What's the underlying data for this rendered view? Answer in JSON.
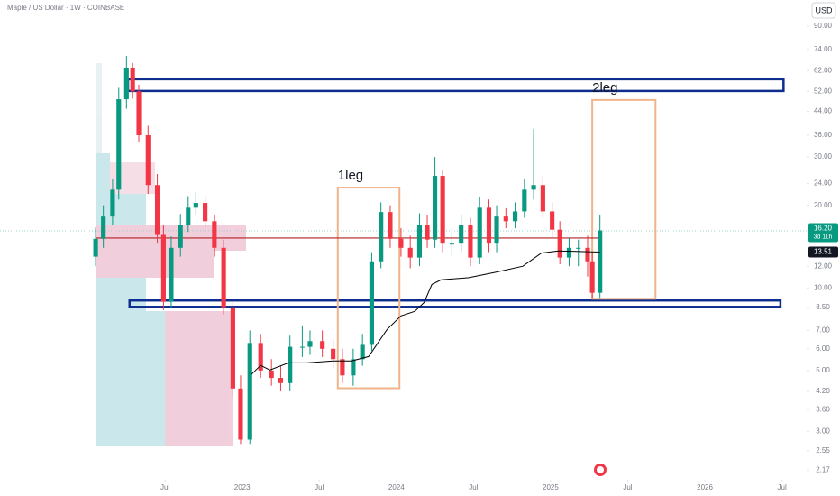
{
  "chart_data": {
    "type": "candlestick",
    "title": "Maple / US Dollar · 1W · COINBASE",
    "currency": "USD",
    "x": [
      2022.05,
      2022.1,
      2022.16,
      2022.2,
      2022.25,
      2022.29,
      2022.33,
      2022.39,
      2022.45,
      2022.49,
      2022.54,
      2022.6,
      2022.65,
      2022.7,
      2022.76,
      2022.82,
      2022.88,
      2022.94,
      2022.99,
      2023.05,
      2023.12,
      2023.19,
      2023.25,
      2023.31,
      2023.39,
      2023.44,
      2023.52,
      2023.59,
      2023.65,
      2023.72,
      2023.78,
      2023.84,
      2023.9,
      2023.96,
      2024.03,
      2024.09,
      2024.15,
      2024.2,
      2024.25,
      2024.3,
      2024.36,
      2024.42,
      2024.48,
      2024.54,
      2024.6,
      2024.65,
      2024.71,
      2024.77,
      2024.83,
      2024.89,
      2024.95,
      2025.01,
      2025.06,
      2025.12,
      2025.18,
      2025.24,
      2025.27,
      2025.32
    ],
    "open": [
      13,
      15.1,
      18.2,
      22.8,
      48.7,
      63.5,
      52,
      36,
      23.7,
      15.6,
      8.9,
      14,
      16.9,
      19.6,
      20.4,
      17.5,
      14,
      8.5,
      4.3,
      2.8,
      6.3,
      5.0,
      4.7,
      4.5,
      6.1,
      6.1,
      6.4,
      6.0,
      5.5,
      4.8,
      5.5,
      6.2,
      12.5,
      18.9,
      15.1,
      14,
      12.9,
      17,
      15,
      25.6,
      14.5,
      14.5,
      16.9,
      12.9,
      19.6,
      14.5,
      18.2,
      17.5,
      19,
      22.8,
      23.7,
      19,
      16.3,
      12.9,
      14,
      14,
      12.5,
      9.6
    ],
    "high": [
      16.6,
      20,
      25,
      53.6,
      70,
      66,
      55,
      39,
      26,
      17,
      15.4,
      18.6,
      21.6,
      22.4,
      21.5,
      18.5,
      15,
      9.2,
      4.8,
      7,
      6.8,
      5.5,
      5.2,
      6.7,
      7.3,
      7,
      7,
      6.5,
      6,
      6,
      6.8,
      13.5,
      20.5,
      20,
      16.5,
      15.5,
      18.7,
      18.5,
      30,
      27,
      16.5,
      18.5,
      18,
      21.5,
      21,
      20,
      19.5,
      20.5,
      25,
      38,
      25.5,
      20.5,
      17.5,
      15.2,
      15,
      15.5,
      13.5,
      18.5
    ],
    "low": [
      12,
      14,
      17,
      21,
      45,
      49,
      34,
      22,
      14.5,
      8.3,
      8.5,
      13,
      16,
      18.5,
      16.5,
      13,
      8,
      4,
      2.7,
      2.7,
      4.7,
      4.4,
      4.2,
      4.2,
      5.6,
      5.7,
      5.6,
      5.1,
      4.5,
      4.4,
      5.2,
      5.9,
      11.8,
      14,
      13,
      11.8,
      12,
      14,
      14,
      13.5,
      13,
      13.5,
      12,
      12.2,
      13.5,
      13.5,
      16.5,
      16.5,
      18,
      21,
      18,
      15.3,
      12.2,
      12,
      12,
      11,
      9.2,
      9.2
    ],
    "close": [
      15.1,
      18.2,
      22.8,
      48.7,
      63.5,
      52,
      36,
      23.7,
      15.6,
      8.9,
      14,
      16.9,
      19.6,
      20.4,
      17.5,
      14,
      8.5,
      4.3,
      2.8,
      6.3,
      5.0,
      4.7,
      4.5,
      6.1,
      6.1,
      6.4,
      6.0,
      5.5,
      4.8,
      5.5,
      6.2,
      12.5,
      18.9,
      15.1,
      14,
      12.9,
      17,
      15,
      25.6,
      14.5,
      14.5,
      16.9,
      12.9,
      19.6,
      14.5,
      18.2,
      17.5,
      19,
      22.8,
      23.7,
      19,
      16.3,
      12.9,
      14,
      14,
      12.5,
      9.6,
      16.2
    ],
    "up_color": "#089981",
    "down_color": "#f23645",
    "line": {
      "x": [
        2023.06,
        2023.12,
        2023.18,
        2023.3,
        2023.42,
        2023.59,
        2023.71,
        2023.82,
        2023.94,
        2024.03,
        2024.12,
        2024.18,
        2024.23,
        2024.29,
        2024.47,
        2024.64,
        2024.82,
        2024.94,
        2025.05,
        2025.32
      ],
      "values": [
        4.84,
        5.22,
        5.02,
        5.33,
        5.33,
        5.42,
        5.42,
        5.62,
        7.06,
        7.91,
        8.22,
        8.86,
        10.3,
        10.7,
        10.9,
        11.4,
        12.0,
        13.4,
        13.65,
        13.51
      ],
      "color": "#000000"
    },
    "hline": {
      "value": 15.2,
      "color": "#b22222"
    },
    "zones": [
      {
        "x": [
          2022.26,
          2026.51
        ],
        "y": [
          52.2,
          57.6
        ],
        "color": "#0d2d8f"
      },
      {
        "x": [
          2022.27,
          2026.49
        ],
        "y": [
          8.53,
          9.0
        ],
        "color": "#0d2d8f"
      }
    ],
    "boxes": [
      {
        "x": [
          2023.62,
          2024.02
        ],
        "y": [
          4.31,
          23.2
        ],
        "color": "#f0b48a",
        "label": "1leg"
      },
      {
        "x": [
          2025.27,
          2025.68
        ],
        "y": [
          9.13,
          48.4
        ],
        "color": "#f0b48a",
        "label": "2leg"
      }
    ],
    "price_label": {
      "value": 16.2,
      "label": "16.20"
    },
    "countdown": "3d 11h",
    "line_label": {
      "value": 13.51,
      "label": "13.51"
    },
    "xlim": [
      2021.43,
      2026.66
    ],
    "xticks": [
      {
        "value": 2022.5,
        "label": "Jul"
      },
      2023,
      {
        "value": 2023.5,
        "label": "Jul"
      },
      2024,
      {
        "value": 2024.5,
        "label": "Jul"
      },
      2025,
      {
        "value": 2025.5,
        "label": "Jul"
      },
      2026,
      {
        "value": 2026.5,
        "label": "Jul"
      }
    ],
    "ylim": [
      2.03,
      112
    ],
    "log_scale": true,
    "yticks": [
      {
        "value": 90,
        "label": "90.00"
      },
      {
        "value": 74,
        "label": "74.00"
      },
      {
        "value": 62,
        "label": "62.00"
      },
      {
        "value": 52,
        "label": "52.00"
      },
      {
        "value": 44,
        "label": "44.00"
      },
      {
        "value": 36,
        "label": "36.00"
      },
      {
        "value": 30,
        "label": "30.00"
      },
      {
        "value": 24,
        "label": "24.00"
      },
      {
        "value": 20,
        "label": "20.00"
      },
      {
        "value": 12,
        "label": "12.00"
      },
      {
        "value": 10,
        "label": "10.00"
      },
      {
        "value": 8.5,
        "label": "8.50"
      },
      {
        "value": 7,
        "label": "7.00"
      },
      {
        "value": 6,
        "label": "6.00"
      },
      {
        "value": 5,
        "label": "5.00"
      },
      {
        "value": 4.2,
        "label": "4.20"
      },
      {
        "value": 3.6,
        "label": "3.60"
      },
      {
        "value": 3,
        "label": "3.00"
      },
      {
        "value": 2.55,
        "label": "2.55"
      },
      {
        "value": 2.17,
        "label": "2.17"
      }
    ]
  }
}
